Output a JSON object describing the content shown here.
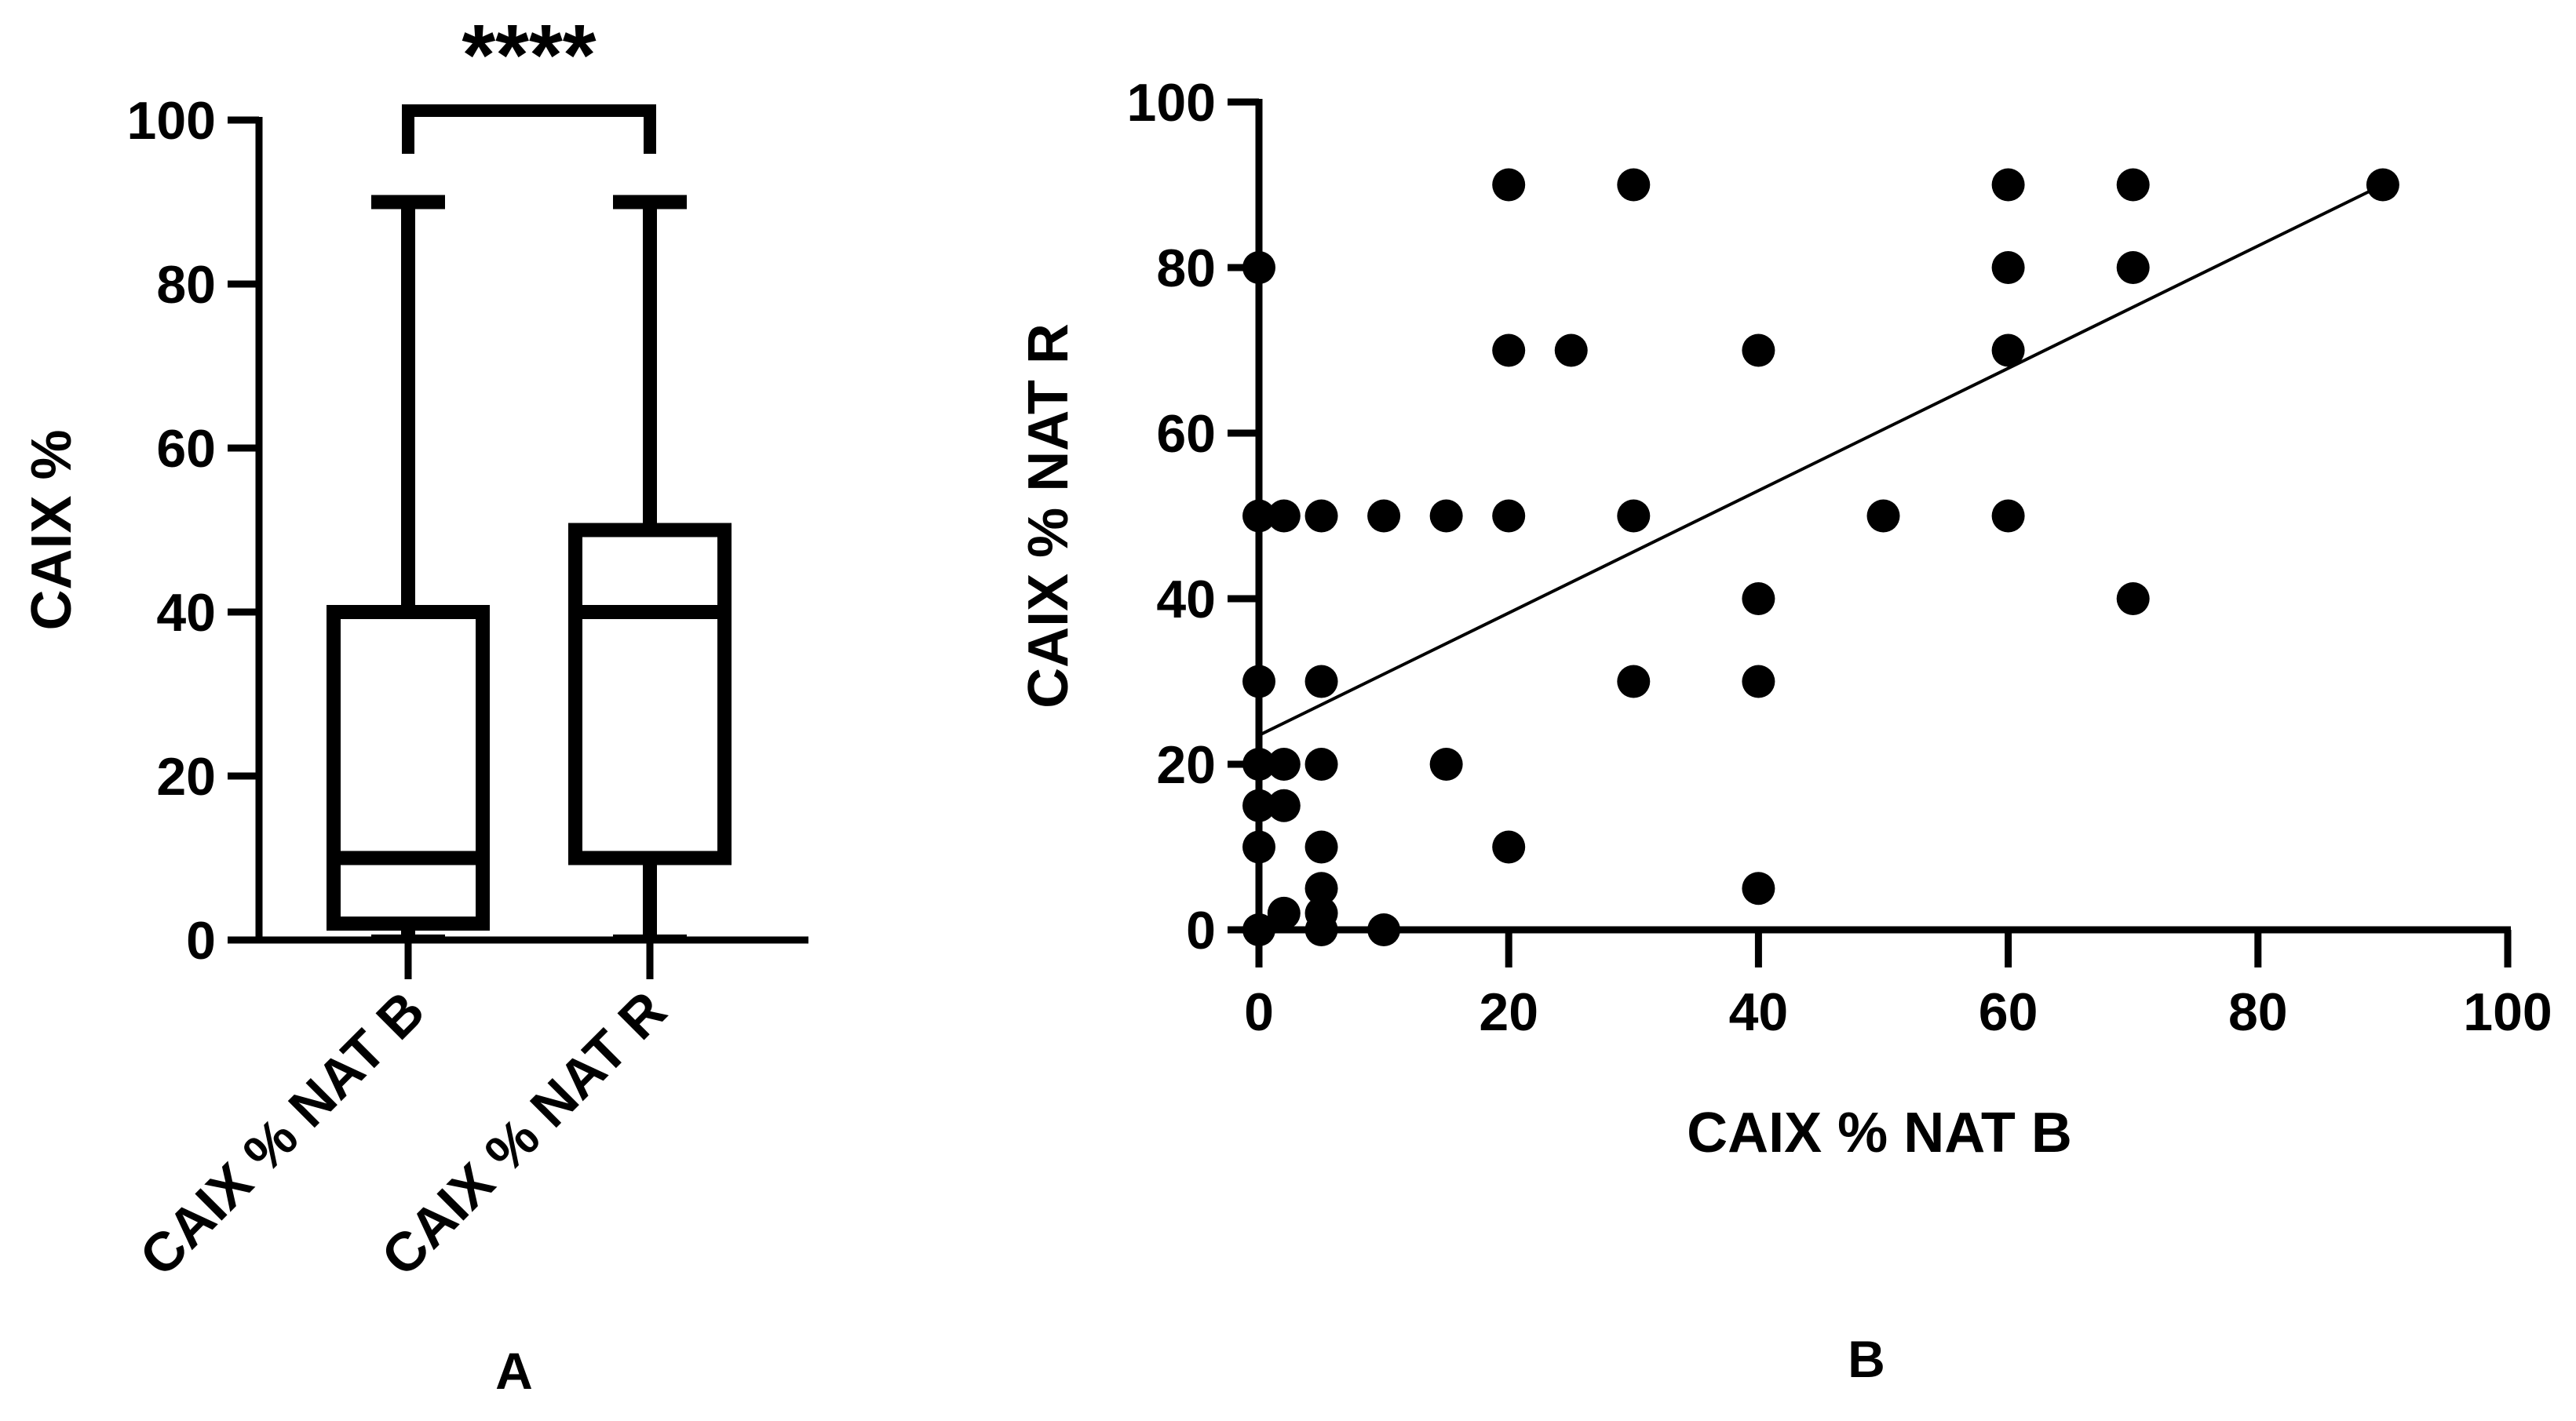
{
  "chart_data": [
    {
      "type": "box",
      "panel_label": "A",
      "ylabel": "CAIX %",
      "ylim": [
        0,
        100
      ],
      "yticks": [
        0,
        20,
        40,
        60,
        80,
        100
      ],
      "categories": [
        "CAIX % NAT B",
        "CAIX % NAT R"
      ],
      "boxes": [
        {
          "name": "CAIX % NAT B",
          "min": 0,
          "q1": 2,
          "median": 10,
          "q3": 40,
          "max": 90
        },
        {
          "name": "CAIX % NAT R",
          "min": 0,
          "q1": 10,
          "median": 40,
          "q3": 50,
          "max": 90
        }
      ],
      "significance": "****"
    },
    {
      "type": "scatter",
      "panel_label": "B",
      "xlabel": "CAIX % NAT B",
      "ylabel": "CAIX % NAT R",
      "xlim": [
        0,
        100
      ],
      "ylim": [
        0,
        100
      ],
      "xticks": [
        0,
        20,
        40,
        60,
        80,
        100
      ],
      "yticks": [
        0,
        20,
        40,
        60,
        80,
        100
      ],
      "points": [
        [
          0,
          80
        ],
        [
          0,
          50
        ],
        [
          0,
          30
        ],
        [
          0,
          20
        ],
        [
          0,
          15
        ],
        [
          0,
          10
        ],
        [
          0,
          0
        ],
        [
          2,
          50
        ],
        [
          2,
          20
        ],
        [
          2,
          15
        ],
        [
          2,
          2
        ],
        [
          5,
          50
        ],
        [
          5,
          30
        ],
        [
          5,
          20
        ],
        [
          5,
          10
        ],
        [
          5,
          5
        ],
        [
          5,
          2
        ],
        [
          5,
          0
        ],
        [
          10,
          50
        ],
        [
          10,
          0
        ],
        [
          15,
          50
        ],
        [
          15,
          20
        ],
        [
          20,
          90
        ],
        [
          20,
          70
        ],
        [
          20,
          50
        ],
        [
          20,
          10
        ],
        [
          25,
          70
        ],
        [
          30,
          90
        ],
        [
          30,
          50
        ],
        [
          30,
          30
        ],
        [
          40,
          70
        ],
        [
          40,
          40
        ],
        [
          40,
          30
        ],
        [
          40,
          5
        ],
        [
          50,
          50
        ],
        [
          60,
          90
        ],
        [
          60,
          80
        ],
        [
          60,
          70
        ],
        [
          60,
          50
        ],
        [
          70,
          90
        ],
        [
          70,
          80
        ],
        [
          70,
          40
        ],
        [
          90,
          90
        ]
      ],
      "regression_line": {
        "x": [
          0,
          90
        ],
        "y": [
          23.5,
          90
        ]
      }
    }
  ]
}
